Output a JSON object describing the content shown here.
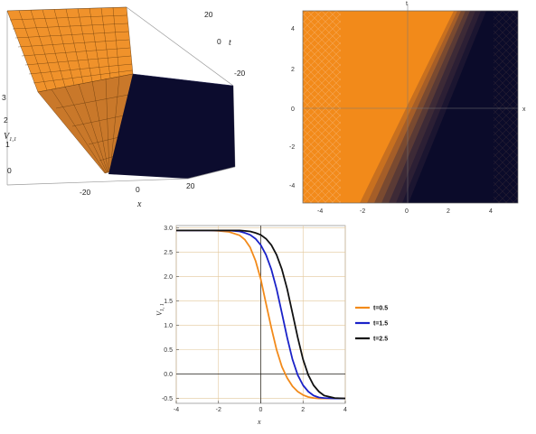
{
  "panels": {
    "surface3d": {
      "zlabel_main": "V",
      "zlabel_sub": "1,1",
      "xlabel": "x",
      "tlabel": "t",
      "x_ticks": [
        "-20",
        "0",
        "20"
      ],
      "t_ticks": [
        "20",
        "0",
        "-20"
      ],
      "z_ticks": [
        "0",
        "1",
        "2",
        "3"
      ],
      "colors": {
        "top": "#f0922b",
        "bottom": "#0c0c2e",
        "wall": "#c9782a"
      }
    },
    "contour": {
      "xlabel": "x",
      "tlabel": "t",
      "x_ticks": [
        "-4",
        "-2",
        "0",
        "2",
        "4"
      ],
      "y_ticks": [
        "4",
        "2",
        "0",
        "-2",
        "-4"
      ],
      "colors": {
        "high": "#f28a1a",
        "low": "#0b0b2a"
      }
    }
  },
  "chart_data": {
    "type": "line",
    "title": "",
    "xlabel": "x",
    "ylabel": "V",
    "ylabel_sub": "1, 1",
    "xlim": [
      -4,
      4
    ],
    "ylim": [
      -0.6,
      3.05
    ],
    "x_ticks": [
      -4,
      -2,
      0,
      2,
      4
    ],
    "y_ticks": [
      3.0,
      2.5,
      2.0,
      1.5,
      1.0,
      0.5,
      0.0,
      -0.5
    ],
    "x_tick_labels": [
      "-4",
      "-2",
      "0",
      "2",
      "4"
    ],
    "y_tick_labels": [
      "3.0",
      "2.5",
      "2.0",
      "1.5",
      "1.0",
      "0.5",
      "0.0",
      "-0.5"
    ],
    "grid": true,
    "legend_position": "right",
    "x": [
      -4.0,
      -3.5,
      -3.0,
      -2.5,
      -2.0,
      -1.5,
      -1.0,
      -0.75,
      -0.5,
      -0.25,
      0.0,
      0.25,
      0.5,
      0.75,
      1.0,
      1.25,
      1.5,
      1.75,
      2.0,
      2.25,
      2.5,
      2.75,
      3.0,
      3.5,
      4.0
    ],
    "series": [
      {
        "name": "t=0.5",
        "color": "#f28a1a",
        "values": [
          2.95,
          2.95,
          2.95,
          2.95,
          2.94,
          2.92,
          2.85,
          2.76,
          2.6,
          2.33,
          1.95,
          1.45,
          0.95,
          0.5,
          0.15,
          -0.08,
          -0.25,
          -0.36,
          -0.43,
          -0.47,
          -0.49,
          -0.5,
          -0.5,
          -0.5,
          -0.5
        ]
      },
      {
        "name": "t=1.5",
        "color": "#1a22c8",
        "values": [
          2.95,
          2.95,
          2.95,
          2.95,
          2.95,
          2.95,
          2.93,
          2.9,
          2.86,
          2.78,
          2.65,
          2.45,
          2.15,
          1.75,
          1.25,
          0.75,
          0.3,
          -0.02,
          -0.23,
          -0.36,
          -0.44,
          -0.48,
          -0.49,
          -0.5,
          -0.5
        ]
      },
      {
        "name": "t=2.5",
        "color": "#111111",
        "values": [
          2.95,
          2.95,
          2.95,
          2.95,
          2.95,
          2.95,
          2.95,
          2.94,
          2.93,
          2.9,
          2.86,
          2.78,
          2.65,
          2.45,
          2.15,
          1.75,
          1.25,
          0.75,
          0.3,
          -0.02,
          -0.23,
          -0.36,
          -0.44,
          -0.49,
          -0.5
        ]
      }
    ]
  }
}
